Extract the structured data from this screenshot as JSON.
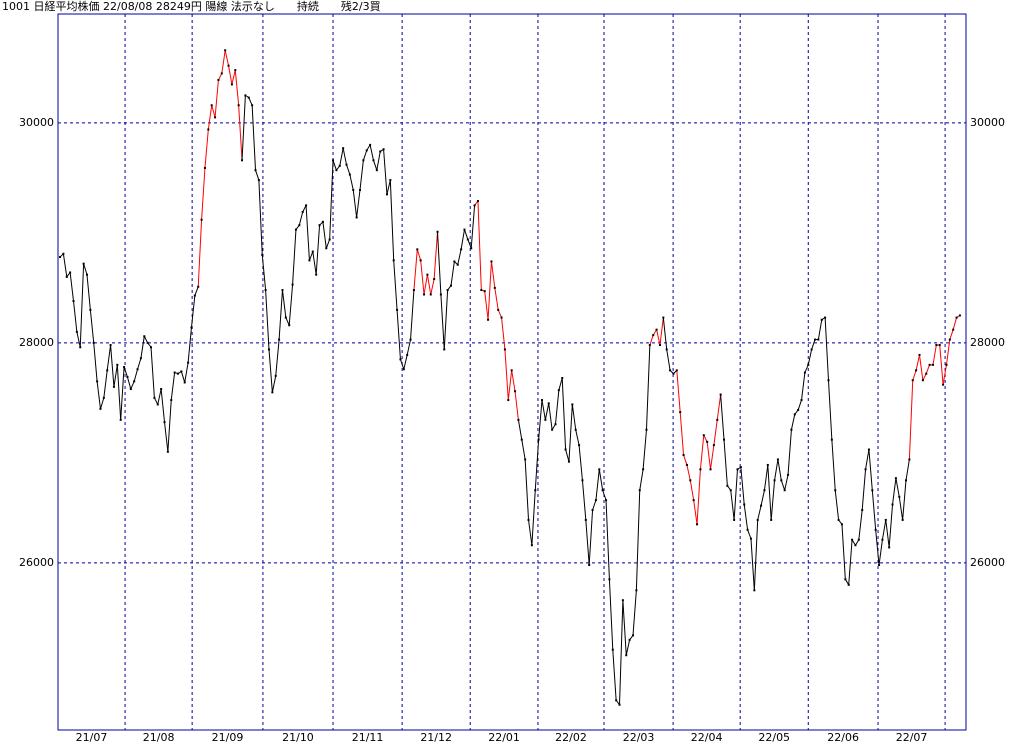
{
  "chart_data": {
    "type": "line",
    "title": "1001 日経平均株価 22/08/08 28249円 陽線 法示なし　　持続　　残2/3買",
    "ylim": [
      24480,
      30990
    ],
    "yticks": [
      26000,
      28000,
      30000
    ],
    "xlim": [
      -0.6,
      268.8
    ],
    "xticks": [
      {
        "value": 19.3,
        "label": "21/07"
      },
      {
        "value": 39.2,
        "label": "21/08"
      },
      {
        "value": 60.2,
        "label": "21/09"
      },
      {
        "value": 81,
        "label": "21/10"
      },
      {
        "value": 101.5,
        "label": "21/11"
      },
      {
        "value": 121.7,
        "label": "21/12"
      },
      {
        "value": 141.8,
        "label": "22/01"
      },
      {
        "value": 161.4,
        "label": "22/02"
      },
      {
        "value": 181.9,
        "label": "22/03"
      },
      {
        "value": 201.8,
        "label": "22/04"
      },
      {
        "value": 222,
        "label": "22/05"
      },
      {
        "value": 242.7,
        "label": "22/06"
      },
      {
        "value": 262.6,
        "label": "22/07"
      }
    ],
    "grid": true,
    "color": "#000000",
    "highlight_color": "#ff0000",
    "frame_color": "#0000a0",
    "highlight_ranges": [
      [
        41,
        54
      ],
      [
        105,
        112
      ],
      [
        123,
        136
      ],
      [
        175,
        179
      ],
      [
        183,
        196
      ],
      [
        252,
        267
      ]
    ],
    "values": [
      28780,
      28810,
      28600,
      28640,
      28380,
      28100,
      27960,
      28720,
      28620,
      28300,
      28000,
      27650,
      27400,
      27500,
      27750,
      27980,
      27600,
      27800,
      27300,
      27780,
      27690,
      27580,
      27650,
      27760,
      27860,
      28060,
      28000,
      27960,
      27500,
      27440,
      27580,
      27280,
      27010,
      27480,
      27730,
      27720,
      27740,
      27640,
      27820,
      28140,
      28430,
      28510,
      29120,
      29590,
      29940,
      30160,
      30050,
      30390,
      30450,
      30660,
      30520,
      30350,
      30480,
      30160,
      29660,
      30250,
      30230,
      30160,
      29570,
      29480,
      28800,
      28480,
      27940,
      27550,
      27700,
      28030,
      28480,
      28230,
      28160,
      28530,
      29030,
      29070,
      29190,
      29250,
      28750,
      28830,
      28620,
      29070,
      29100,
      28860,
      28940,
      29660,
      29570,
      29610,
      29770,
      29620,
      29530,
      29390,
      29140,
      29390,
      29660,
      29750,
      29800,
      29660,
      29570,
      29740,
      29760,
      29350,
      29480,
      28750,
      28300,
      27850,
      27760,
      27890,
      28030,
      28480,
      28850,
      28750,
      28440,
      28620,
      28440,
      28580,
      29010,
      28440,
      27940,
      28480,
      28520,
      28740,
      28710,
      28850,
      29030,
      28940,
      28860,
      29250,
      29290,
      28480,
      28470,
      28210,
      28740,
      28500,
      28300,
      28230,
      27940,
      27480,
      27750,
      27560,
      27300,
      27120,
      26940,
      26390,
      26160,
      26660,
      27120,
      27480,
      27300,
      27450,
      27210,
      27260,
      27570,
      27680,
      27030,
      26920,
      27440,
      27210,
      27070,
      26750,
      26390,
      25980,
      26480,
      26570,
      26850,
      26660,
      26570,
      25850,
      25210,
      24750,
      24710,
      25660,
      25160,
      25300,
      25340,
      25750,
      26660,
      26850,
      27210,
      27980,
      28070,
      28120,
      27980,
      28230,
      27940,
      27750,
      27720,
      27750,
      27370,
      26980,
      26890,
      26750,
      26570,
      26350,
      26850,
      27160,
      27100,
      26850,
      27070,
      27300,
      27530,
      27120,
      26700,
      26660,
      26390,
      26850,
      26870,
      26530,
      26300,
      26220,
      25750,
      26390,
      26520,
      26660,
      26890,
      26390,
      26750,
      26940,
      26750,
      26660,
      26800,
      27210,
      27350,
      27390,
      27480,
      27730,
      27800,
      27940,
      28030,
      28030,
      28210,
      28230,
      27660,
      27120,
      26660,
      26390,
      26350,
      25850,
      25800,
      26210,
      26160,
      26210,
      26480,
      26850,
      27030,
      26660,
      26300,
      25980,
      26210,
      26390,
      26140,
      26530,
      26770,
      26600,
      26390,
      26750,
      26940,
      27660,
      27750,
      27890,
      27660,
      27720,
      27800,
      27800,
      27980,
      27980,
      27620,
      27800,
      28030,
      28120,
      28230,
      28249
    ]
  }
}
